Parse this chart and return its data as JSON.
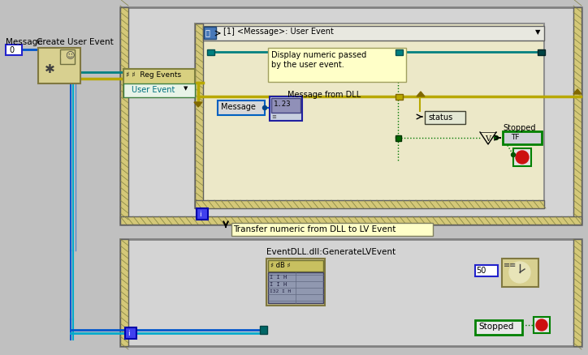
{
  "fig_w": 7.24,
  "fig_h": 4.39,
  "dpi": 100,
  "bg": "#c0c0c0",
  "title_top": "[1] <Message>: User Event",
  "label_message": "Message",
  "label_create": "Create User Event",
  "label_reg": "Reg Events",
  "label_user_event": "User Event",
  "label_display": "Display numeric passed\nby the user event.",
  "label_msg_dll": "Message from DLL",
  "label_message_ctrl": "Message",
  "label_status": "status",
  "label_stopped": "Stopped",
  "label_transfer": "Transfer numeric from DLL to LV Event",
  "label_eventdll": "EventDLL.dll:GenerateLVEvent",
  "label_50": "50",
  "label_stopped2": "Stopped",
  "wire_teal": "#008080",
  "wire_yellow": "#b8a800",
  "wire_blue": "#0055cc",
  "wire_green": "#007700",
  "color_lv_cream": "#f0edcc",
  "color_lv_yellow": "#d4c878",
  "color_gray_frame": "#909090",
  "color_dark": "#404040"
}
